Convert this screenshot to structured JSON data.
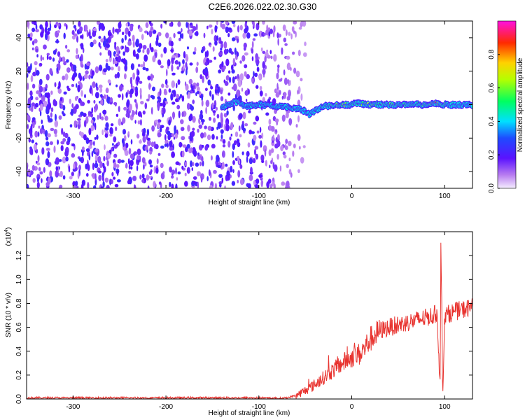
{
  "title": "C2E6.2026.022.02.30.G30",
  "chart_data": [
    {
      "type": "heatmap",
      "xlabel": "Height of straight line (km)",
      "ylabel": "Frequency (Hz)",
      "xlim": [
        -350,
        130
      ],
      "ylim": [
        -50,
        50
      ],
      "xticks": [
        -300,
        -200,
        -100,
        0,
        100
      ],
      "xtick_labels": [
        "-300",
        "-200",
        "-100",
        "0",
        "100"
      ],
      "yticks": [
        -40,
        -20,
        0,
        20,
        40
      ],
      "ytick_labels": [
        "-40",
        "-20",
        "0",
        "20",
        "40"
      ],
      "colorbar": {
        "label": "Normalized spectral amplitude",
        "range": [
          0,
          1
        ],
        "ticks": [
          0.0,
          0.2,
          0.4,
          0.6,
          0.8
        ],
        "tick_labels": [
          "0.0",
          "0.2",
          "0.4",
          "0.6",
          "0.8"
        ]
      },
      "signal_track": {
        "x": [
          -140,
          -125,
          -115,
          -100,
          -80,
          -60,
          -50,
          -45,
          -40,
          -30,
          -15,
          0,
          5,
          20,
          40,
          60,
          80,
          90,
          95,
          110,
          130
        ],
        "frequency": [
          -2,
          2,
          -1,
          0,
          -1,
          -2,
          -4,
          -6,
          -4,
          -1,
          0,
          0,
          1,
          0,
          0,
          0,
          0,
          1,
          0,
          0,
          0
        ],
        "amplitude": [
          0.25,
          0.3,
          0.3,
          0.3,
          0.4,
          0.45,
          0.5,
          0.45,
          0.5,
          0.6,
          0.8,
          0.7,
          0.6,
          0.75,
          0.65,
          0.55,
          0.6,
          0.9,
          0.7,
          0.5,
          0.45
        ]
      },
      "noise_extent_x": [
        -350,
        -65
      ]
    },
    {
      "type": "line",
      "xlabel": "Height of straight line (km)",
      "ylabel": "SNR (10 * v/v)",
      "yscale_label": "(x10",
      "yscale_exp": "4",
      "yscale_close": ")",
      "xlim": [
        -350,
        130
      ],
      "ylim": [
        0,
        1.4
      ],
      "xticks": [
        -300,
        -200,
        -100,
        0,
        100
      ],
      "xtick_labels": [
        "-300",
        "-200",
        "-100",
        "0",
        "100"
      ],
      "yticks": [
        0.0,
        0.2,
        0.4,
        0.6,
        0.8,
        1.0,
        1.2
      ],
      "ytick_labels": [
        "0.0",
        "0.2",
        "0.4",
        "0.6",
        "0.8",
        "1.0",
        "1.2"
      ],
      "color": "#e8332f",
      "series": [
        {
          "x": [
            -350,
            -300,
            -250,
            -200,
            -150,
            -100,
            -80,
            -70,
            -60,
            -50,
            -40,
            -30,
            -20,
            -10,
            0,
            10,
            20,
            30,
            40,
            50,
            60,
            70,
            80,
            88,
            92,
            94,
            95,
            96,
            98,
            100,
            110,
            120,
            130
          ],
          "values": [
            0.01,
            0.01,
            0.01,
            0.01,
            0.01,
            0.01,
            0.005,
            0.01,
            0.03,
            0.07,
            0.12,
            0.18,
            0.24,
            0.3,
            0.35,
            0.38,
            0.5,
            0.57,
            0.6,
            0.62,
            0.64,
            0.66,
            0.68,
            0.7,
            0.72,
            0.3,
            0.05,
            1.3,
            0.05,
            0.7,
            0.73,
            0.75,
            0.77
          ]
        }
      ]
    }
  ]
}
